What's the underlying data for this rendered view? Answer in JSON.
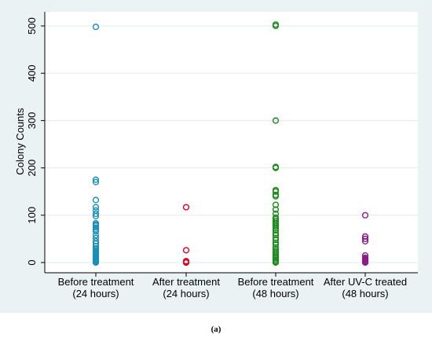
{
  "caption": "(a)",
  "chart_data": {
    "type": "scatter",
    "title": "",
    "xlabel": "",
    "ylabel": "Colony Counts",
    "ylim": [
      0,
      500
    ],
    "yticks": [
      0,
      100,
      200,
      300,
      400,
      500
    ],
    "grid": true,
    "legend": "none",
    "categories": [
      [
        "Before treatment",
        "(24 hours)"
      ],
      [
        "After treatment",
        "(24 hours)"
      ],
      [
        "Before treatment",
        "(48 hours)"
      ],
      [
        "After UV-C treated",
        "(48 hours)"
      ]
    ],
    "series": [
      {
        "color": "#1a8fb5",
        "values": [
          498,
          175,
          170,
          132,
          117,
          110,
          103,
          98,
          83,
          80,
          78,
          74,
          70,
          66,
          58,
          52,
          45,
          40,
          35,
          30,
          28,
          25,
          22,
          20,
          18,
          15,
          12,
          10,
          8,
          6,
          4,
          3,
          2,
          1,
          0
        ]
      },
      {
        "color": "#e3001b",
        "values": [
          117,
          26,
          3,
          2,
          1,
          0,
          0,
          0
        ]
      },
      {
        "color": "#1a8a1a",
        "values": [
          503,
          500,
          300,
          202,
          200,
          153,
          150,
          143,
          140,
          122,
          112,
          103,
          95,
          92,
          88,
          84,
          80,
          76,
          72,
          68,
          62,
          58,
          52,
          48,
          42,
          38,
          32,
          28,
          24,
          20,
          16,
          12,
          9,
          6,
          3,
          1,
          0
        ]
      },
      {
        "color": "#8b1a8b",
        "values": [
          100,
          55,
          50,
          45,
          15,
          10,
          8,
          6,
          4,
          2,
          1,
          0
        ]
      }
    ]
  }
}
